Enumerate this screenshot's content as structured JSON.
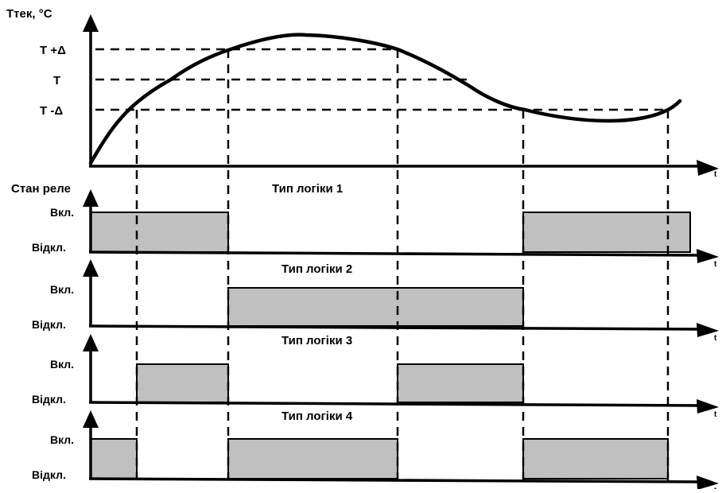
{
  "temperature_panel": {
    "y_axis_label": "Tтек, °C",
    "levels": [
      {
        "name": "upper",
        "label": "T +Δ"
      },
      {
        "name": "setpoint",
        "label": "T"
      },
      {
        "name": "lower",
        "label": "T -Δ"
      }
    ],
    "x_axis_label": "t"
  },
  "relay_panels": {
    "header": "Стан реле",
    "on_label": "Вкл.",
    "off_label": "Відкл.",
    "x_axis_label": "t",
    "panels": [
      {
        "title": "Тип логіки 1",
        "on_intervals": [
          [
            0,
            1
          ],
          [
            4,
            6
          ]
        ]
      },
      {
        "title": "Тип логіки 2",
        "on_intervals": [
          [
            1,
            4
          ]
        ]
      },
      {
        "title": "Тип логіки 3",
        "on_intervals": [
          [
            0.5,
            1
          ],
          [
            3,
            4
          ]
        ]
      },
      {
        "title": "Тип логіки 4",
        "on_intervals": [
          [
            0,
            0.5
          ],
          [
            1,
            3
          ],
          [
            4,
            5
          ]
        ]
      }
    ]
  },
  "colors": {
    "relay_on_fill": "#c0c0c0",
    "line": "#000000",
    "background": "#ffffff"
  }
}
